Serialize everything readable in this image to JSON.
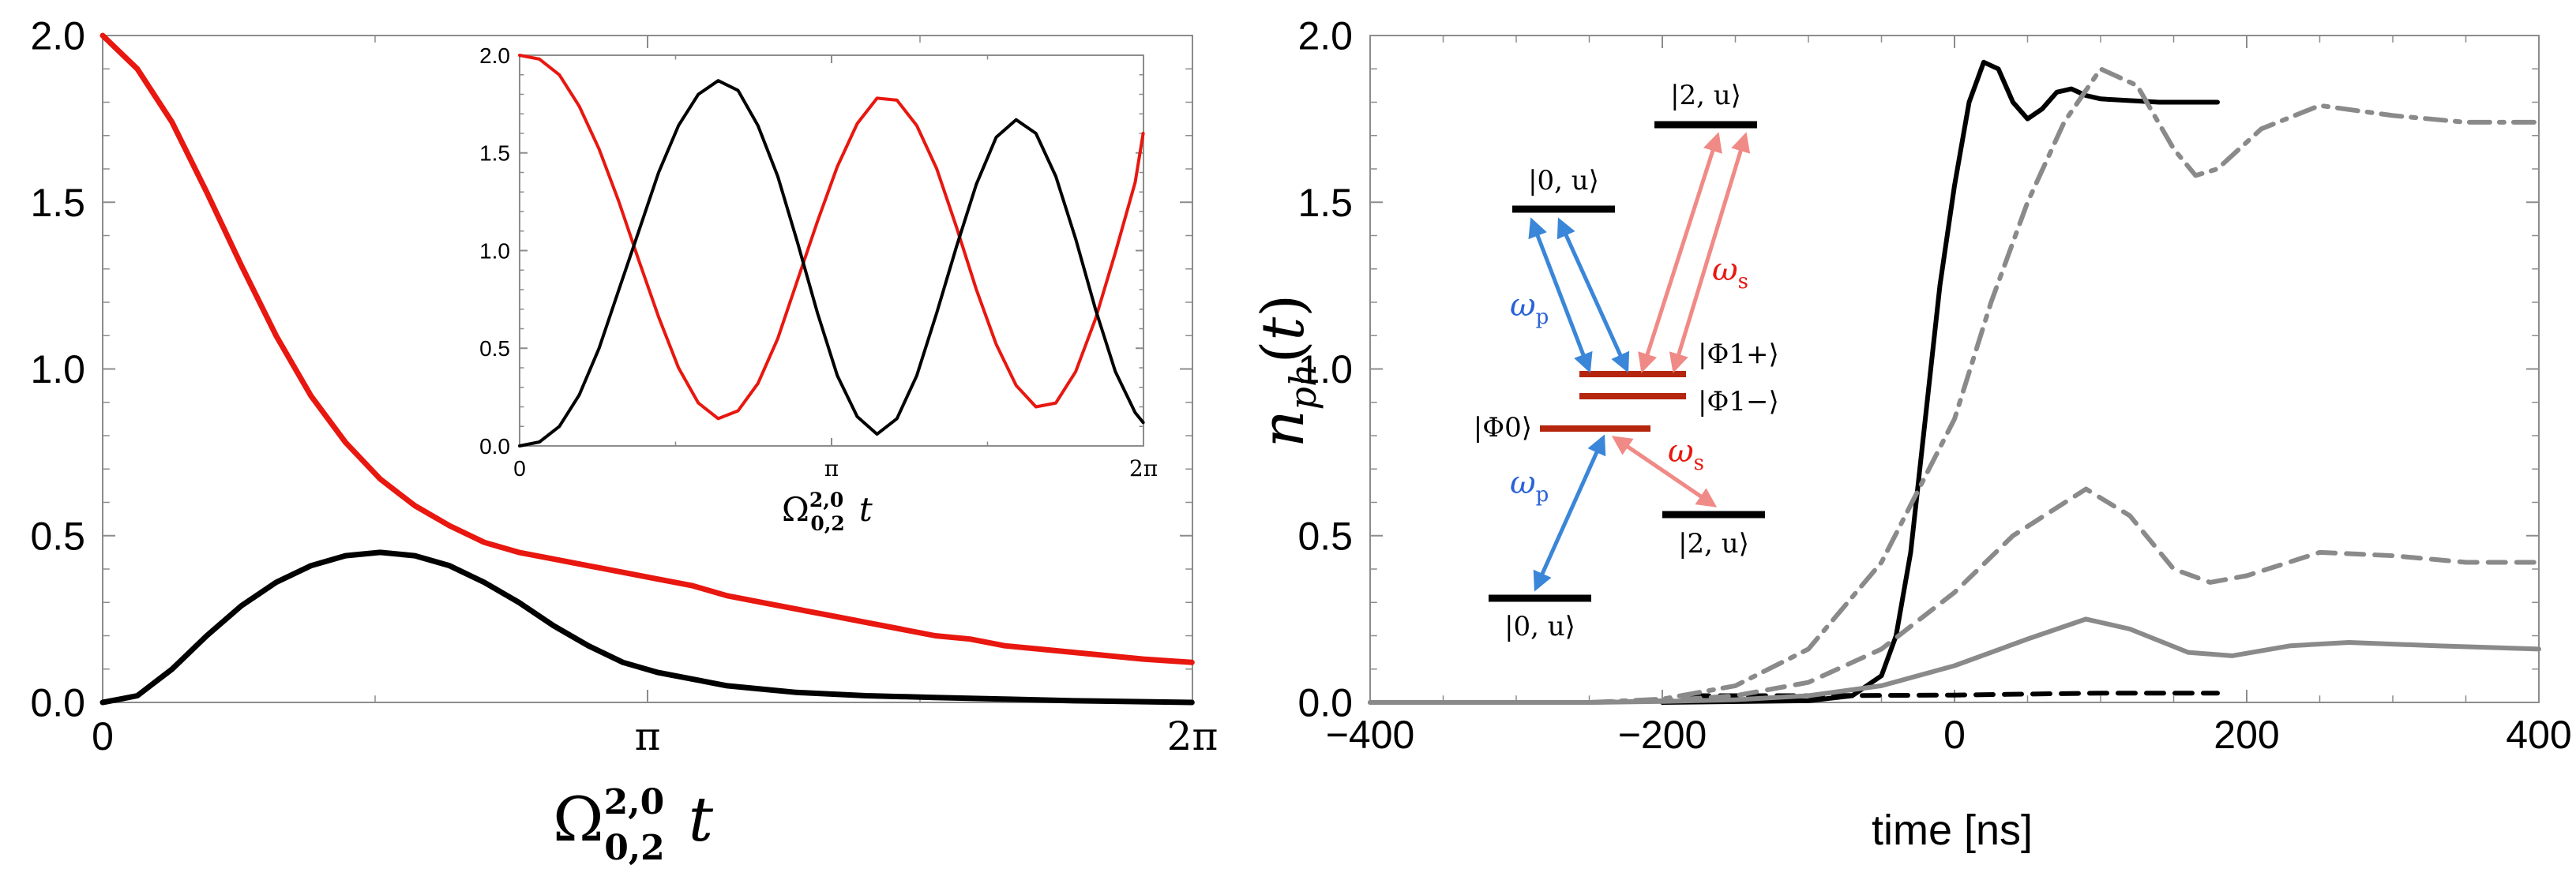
{
  "colors": {
    "red": "#e8170f",
    "black": "#000000",
    "gray": "#8a8a8a",
    "pink": "#f08a86",
    "blue": "#3a86d8",
    "darkred": "#b5260f"
  },
  "chart_data": [
    {
      "id": "left-main",
      "type": "line",
      "xlabel": "Ω^{2,0}_{0,2} t",
      "ylabel": "",
      "xlim": [
        0,
        6.2832
      ],
      "ylim": [
        0,
        2.0
      ],
      "x_ticks": [
        {
          "value": 0,
          "label": "0"
        },
        {
          "value": 3.1416,
          "label": "π"
        },
        {
          "value": 6.2832,
          "label": "2π"
        }
      ],
      "y_ticks": [
        {
          "value": 0.0,
          "label": "0.0"
        },
        {
          "value": 0.5,
          "label": "0.5"
        },
        {
          "value": 1.0,
          "label": "1.0"
        },
        {
          "value": 1.5,
          "label": "1.5"
        },
        {
          "value": 2.0,
          "label": "2.0"
        }
      ],
      "series": [
        {
          "color": "red",
          "points": [
            [
              0,
              2.0
            ],
            [
              0.2,
              1.9
            ],
            [
              0.4,
              1.74
            ],
            [
              0.6,
              1.53
            ],
            [
              0.8,
              1.31
            ],
            [
              1.0,
              1.1
            ],
            [
              1.2,
              0.92
            ],
            [
              1.4,
              0.78
            ],
            [
              1.6,
              0.67
            ],
            [
              1.8,
              0.59
            ],
            [
              2.0,
              0.53
            ],
            [
              2.2,
              0.48
            ],
            [
              2.4,
              0.45
            ],
            [
              2.6,
              0.43
            ],
            [
              2.8,
              0.41
            ],
            [
              3.0,
              0.39
            ],
            [
              3.2,
              0.37
            ],
            [
              3.4,
              0.35
            ],
            [
              3.6,
              0.32
            ],
            [
              3.8,
              0.3
            ],
            [
              4.0,
              0.28
            ],
            [
              4.2,
              0.26
            ],
            [
              4.4,
              0.24
            ],
            [
              4.6,
              0.22
            ],
            [
              4.8,
              0.2
            ],
            [
              5.0,
              0.19
            ],
            [
              5.2,
              0.17
            ],
            [
              5.4,
              0.16
            ],
            [
              5.6,
              0.15
            ],
            [
              5.8,
              0.14
            ],
            [
              6.0,
              0.13
            ],
            [
              6.28,
              0.12
            ]
          ]
        },
        {
          "color": "black",
          "points": [
            [
              0,
              0.0
            ],
            [
              0.1,
              0.01
            ],
            [
              0.2,
              0.02
            ],
            [
              0.3,
              0.06
            ],
            [
              0.4,
              0.1
            ],
            [
              0.6,
              0.2
            ],
            [
              0.8,
              0.29
            ],
            [
              1.0,
              0.36
            ],
            [
              1.2,
              0.41
            ],
            [
              1.4,
              0.44
            ],
            [
              1.6,
              0.45
            ],
            [
              1.8,
              0.44
            ],
            [
              2.0,
              0.41
            ],
            [
              2.2,
              0.36
            ],
            [
              2.4,
              0.3
            ],
            [
              2.6,
              0.23
            ],
            [
              2.8,
              0.17
            ],
            [
              3.0,
              0.12
            ],
            [
              3.2,
              0.09
            ],
            [
              3.4,
              0.07
            ],
            [
              3.6,
              0.05
            ],
            [
              3.8,
              0.04
            ],
            [
              4.0,
              0.03
            ],
            [
              4.4,
              0.02
            ],
            [
              4.8,
              0.015
            ],
            [
              5.2,
              0.01
            ],
            [
              5.6,
              0.005
            ],
            [
              6.28,
              0.0
            ]
          ]
        }
      ]
    },
    {
      "id": "left-inset",
      "type": "line",
      "xlabel": "Ω^{2,0}_{0,2} t",
      "xlim": [
        0,
        6.2832
      ],
      "ylim": [
        0,
        2.0
      ],
      "x_ticks": [
        {
          "value": 0,
          "label": "0"
        },
        {
          "value": 3.1416,
          "label": "π"
        },
        {
          "value": 6.2832,
          "label": "2π"
        }
      ],
      "y_ticks": [
        {
          "value": 0.0,
          "label": "0.0"
        },
        {
          "value": 0.5,
          "label": "0.5"
        },
        {
          "value": 1.0,
          "label": "1.0"
        },
        {
          "value": 1.5,
          "label": "1.5"
        },
        {
          "value": 2.0,
          "label": "2.0"
        }
      ],
      "series": [
        {
          "color": "red",
          "points": [
            [
              0,
              2.0
            ],
            [
              0.2,
              1.98
            ],
            [
              0.4,
              1.9
            ],
            [
              0.6,
              1.74
            ],
            [
              0.8,
              1.52
            ],
            [
              1.0,
              1.25
            ],
            [
              1.2,
              0.95
            ],
            [
              1.4,
              0.66
            ],
            [
              1.6,
              0.4
            ],
            [
              1.8,
              0.22
            ],
            [
              2.0,
              0.14
            ],
            [
              2.2,
              0.18
            ],
            [
              2.4,
              0.32
            ],
            [
              2.6,
              0.55
            ],
            [
              2.8,
              0.85
            ],
            [
              3.0,
              1.15
            ],
            [
              3.2,
              1.43
            ],
            [
              3.4,
              1.65
            ],
            [
              3.6,
              1.78
            ],
            [
              3.8,
              1.77
            ],
            [
              4.0,
              1.64
            ],
            [
              4.2,
              1.42
            ],
            [
              4.4,
              1.12
            ],
            [
              4.6,
              0.8
            ],
            [
              4.8,
              0.52
            ],
            [
              5.0,
              0.31
            ],
            [
              5.2,
              0.2
            ],
            [
              5.4,
              0.22
            ],
            [
              5.6,
              0.38
            ],
            [
              5.8,
              0.65
            ],
            [
              6.0,
              0.99
            ],
            [
              6.2,
              1.35
            ],
            [
              6.28,
              1.6
            ]
          ]
        },
        {
          "color": "black",
          "points": [
            [
              0,
              0.0
            ],
            [
              0.2,
              0.02
            ],
            [
              0.4,
              0.1
            ],
            [
              0.6,
              0.26
            ],
            [
              0.8,
              0.5
            ],
            [
              1.0,
              0.8
            ],
            [
              1.2,
              1.1
            ],
            [
              1.4,
              1.4
            ],
            [
              1.6,
              1.64
            ],
            [
              1.8,
              1.8
            ],
            [
              2.0,
              1.87
            ],
            [
              2.2,
              1.82
            ],
            [
              2.4,
              1.64
            ],
            [
              2.6,
              1.38
            ],
            [
              2.8,
              1.04
            ],
            [
              3.0,
              0.68
            ],
            [
              3.2,
              0.36
            ],
            [
              3.4,
              0.15
            ],
            [
              3.6,
              0.06
            ],
            [
              3.8,
              0.14
            ],
            [
              4.0,
              0.36
            ],
            [
              4.2,
              0.68
            ],
            [
              4.4,
              1.02
            ],
            [
              4.6,
              1.34
            ],
            [
              4.8,
              1.58
            ],
            [
              5.0,
              1.67
            ],
            [
              5.2,
              1.6
            ],
            [
              5.4,
              1.38
            ],
            [
              5.6,
              1.06
            ],
            [
              5.8,
              0.7
            ],
            [
              6.0,
              0.38
            ],
            [
              6.2,
              0.17
            ],
            [
              6.28,
              0.12
            ]
          ]
        }
      ]
    },
    {
      "id": "right-main",
      "type": "line",
      "xlabel": "time [ns]",
      "ylabel": "n_{ph}(t)",
      "xlim": [
        -400,
        400
      ],
      "ylim": [
        0,
        2.0
      ],
      "x_ticks": [
        {
          "value": -400,
          "label": "−400"
        },
        {
          "value": -200,
          "label": "−200"
        },
        {
          "value": 0,
          "label": "0"
        },
        {
          "value": 200,
          "label": "200"
        },
        {
          "value": 400,
          "label": "400"
        }
      ],
      "y_ticks": [
        {
          "value": 0.0,
          "label": "0.0"
        },
        {
          "value": 0.5,
          "label": "0.5"
        },
        {
          "value": 1.0,
          "label": "1.0"
        },
        {
          "value": 1.5,
          "label": "1.5"
        },
        {
          "value": 2.0,
          "label": "2.0"
        }
      ],
      "series": [
        {
          "color": "black",
          "style": "solid",
          "points": [
            [
              -200,
              0.0
            ],
            [
              -100,
              0.005
            ],
            [
              -70,
              0.02
            ],
            [
              -50,
              0.08
            ],
            [
              -40,
              0.2
            ],
            [
              -30,
              0.45
            ],
            [
              -20,
              0.85
            ],
            [
              -10,
              1.25
            ],
            [
              0,
              1.55
            ],
            [
              10,
              1.8
            ],
            [
              20,
              1.92
            ],
            [
              30,
              1.9
            ],
            [
              40,
              1.8
            ],
            [
              50,
              1.75
            ],
            [
              60,
              1.78
            ],
            [
              70,
              1.83
            ],
            [
              80,
              1.84
            ],
            [
              90,
              1.82
            ],
            [
              100,
              1.81
            ],
            [
              140,
              1.8
            ],
            [
              180,
              1.8
            ]
          ]
        },
        {
          "color": "black",
          "style": "dashed",
          "points": [
            [
              -180,
              0.02
            ],
            [
              -100,
              0.02
            ],
            [
              0,
              0.022
            ],
            [
              50,
              0.025
            ],
            [
              100,
              0.028
            ],
            [
              180,
              0.028
            ]
          ]
        },
        {
          "color": "gray",
          "style": "dashdot",
          "points": [
            [
              -400,
              0.0
            ],
            [
              -250,
              0.0
            ],
            [
              -200,
              0.01
            ],
            [
              -150,
              0.05
            ],
            [
              -100,
              0.16
            ],
            [
              -50,
              0.42
            ],
            [
              0,
              0.85
            ],
            [
              25,
              1.2
            ],
            [
              50,
              1.5
            ],
            [
              75,
              1.74
            ],
            [
              100,
              1.9
            ],
            [
              125,
              1.85
            ],
            [
              150,
              1.66
            ],
            [
              165,
              1.58
            ],
            [
              180,
              1.6
            ],
            [
              210,
              1.72
            ],
            [
              250,
              1.79
            ],
            [
              300,
              1.76
            ],
            [
              350,
              1.74
            ],
            [
              400,
              1.74
            ]
          ]
        },
        {
          "color": "gray",
          "style": "dashed",
          "points": [
            [
              -400,
              0.0
            ],
            [
              -250,
              0.0
            ],
            [
              -200,
              0.005
            ],
            [
              -150,
              0.02
            ],
            [
              -100,
              0.06
            ],
            [
              -50,
              0.16
            ],
            [
              0,
              0.33
            ],
            [
              40,
              0.5
            ],
            [
              90,
              0.64
            ],
            [
              120,
              0.56
            ],
            [
              150,
              0.4
            ],
            [
              175,
              0.36
            ],
            [
              200,
              0.38
            ],
            [
              250,
              0.45
            ],
            [
              300,
              0.44
            ],
            [
              350,
              0.42
            ],
            [
              400,
              0.42
            ]
          ]
        },
        {
          "color": "gray",
          "style": "solid",
          "points": [
            [
              -400,
              0.0
            ],
            [
              -250,
              0.0
            ],
            [
              -200,
              0.003
            ],
            [
              -150,
              0.008
            ],
            [
              -100,
              0.02
            ],
            [
              -50,
              0.05
            ],
            [
              0,
              0.11
            ],
            [
              50,
              0.19
            ],
            [
              90,
              0.25
            ],
            [
              120,
              0.22
            ],
            [
              160,
              0.15
            ],
            [
              190,
              0.14
            ],
            [
              230,
              0.17
            ],
            [
              270,
              0.18
            ],
            [
              330,
              0.17
            ],
            [
              400,
              0.16
            ]
          ]
        }
      ]
    }
  ],
  "diagram": {
    "levels": [
      {
        "label": "|0, u⟩",
        "color": "black"
      },
      {
        "label": "|2, u⟩",
        "color": "black"
      },
      {
        "label": "|Φ1+⟩",
        "color": "darkred"
      },
      {
        "label": "|Φ1−⟩",
        "color": "darkred"
      },
      {
        "label": "|Φ0⟩",
        "color": "darkred"
      },
      {
        "label": "|2, u⟩",
        "color": "black"
      },
      {
        "label": "|0, u⟩",
        "color": "black"
      }
    ],
    "arrow_labels": {
      "omega_p_top": "ωp",
      "omega_s_top": "ωs",
      "omega_p_bottom": "ωp",
      "omega_s_bottom": "ωs"
    }
  }
}
